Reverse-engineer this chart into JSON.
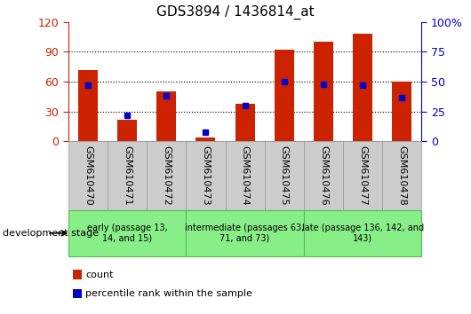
{
  "title": "GDS3894 / 1436814_at",
  "samples": [
    "GSM610470",
    "GSM610471",
    "GSM610472",
    "GSM610473",
    "GSM610474",
    "GSM610475",
    "GSM610476",
    "GSM610477",
    "GSM610478"
  ],
  "count": [
    72,
    22,
    50,
    4,
    38,
    92,
    100,
    108,
    60
  ],
  "percentile": [
    47,
    22,
    38,
    8,
    30,
    50,
    48,
    47,
    37
  ],
  "left_ylim": [
    0,
    120
  ],
  "right_ylim": [
    0,
    100
  ],
  "left_yticks": [
    0,
    30,
    60,
    90,
    120
  ],
  "right_yticks": [
    0,
    25,
    50,
    75,
    100
  ],
  "right_yticklabels": [
    "0",
    "25",
    "50",
    "75",
    "100%"
  ],
  "bar_color": "#CC2200",
  "pct_color": "#0000CC",
  "groups": [
    {
      "label": "early (passage 13,\n14, and 15)",
      "start": 0,
      "end": 3
    },
    {
      "label": "intermediate (passages 63,\n71, and 73)",
      "start": 3,
      "end": 6
    },
    {
      "label": "late (passage 136, 142, and\n143)",
      "start": 6,
      "end": 9
    }
  ],
  "legend_count_label": "count",
  "legend_pct_label": "percentile rank within the sample",
  "dev_stage_label": "development stage",
  "bar_width": 0.5,
  "pct_marker_size": 5,
  "tick_label_fontsize": 8,
  "group_label_fontsize": 7,
  "group_bg": "#88EE88",
  "group_edge": "#55BB55",
  "tick_bg": "#CCCCCC",
  "tick_edge": "#999999"
}
